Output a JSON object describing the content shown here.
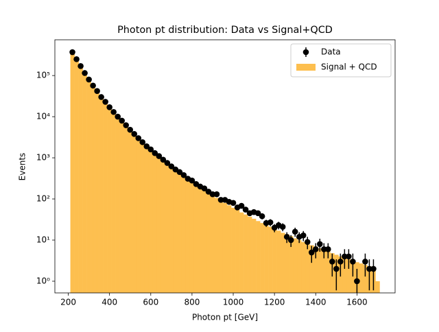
{
  "chart_data": {
    "type": "histogram",
    "title": "Photon pt distribution: Data vs Signal+QCD",
    "xlabel": "Photon pt [GeV]",
    "ylabel": "Events",
    "xlim": [
      135,
      1785
    ],
    "ylim": [
      0.52,
      740000
    ],
    "log_y": true,
    "xticks": [
      200,
      400,
      600,
      800,
      1000,
      1200,
      1400,
      1600
    ],
    "yticks": [
      {
        "value": 1,
        "label": "10⁰"
      },
      {
        "value": 10,
        "label": "10¹"
      },
      {
        "value": 100,
        "label": "10²"
      },
      {
        "value": 1000,
        "label": "10³"
      },
      {
        "value": 10000,
        "label": "10⁴"
      },
      {
        "value": 100000,
        "label": "10⁵"
      }
    ],
    "legend": "upper right",
    "series": [
      {
        "name": "Data",
        "type": "errorbar",
        "color": "#000000",
        "x": [
          220,
          240,
          260,
          280,
          300,
          320,
          340,
          360,
          380,
          400,
          420,
          440,
          460,
          480,
          500,
          520,
          540,
          560,
          580,
          600,
          620,
          640,
          660,
          680,
          700,
          720,
          740,
          760,
          780,
          800,
          820,
          840,
          860,
          880,
          900,
          920,
          940,
          960,
          980,
          1000,
          1020,
          1040,
          1060,
          1080,
          1100,
          1120,
          1140,
          1160,
          1180,
          1200,
          1220,
          1240,
          1260,
          1280,
          1300,
          1320,
          1340,
          1360,
          1380,
          1400,
          1420,
          1440,
          1460,
          1480,
          1500,
          1520,
          1540,
          1560,
          1580,
          1600,
          1640,
          1660,
          1680
        ],
        "values": [
          370000,
          250000,
          170000,
          115000,
          80000,
          57000,
          42000,
          30000,
          23000,
          17000,
          13000,
          10000,
          8000,
          6200,
          4800,
          3800,
          3000,
          2400,
          1900,
          1600,
          1300,
          1100,
          900,
          750,
          620,
          520,
          450,
          380,
          310,
          280,
          230,
          200,
          180,
          150,
          130,
          130,
          95,
          95,
          85,
          80,
          62,
          68,
          55,
          45,
          48,
          45,
          38,
          26,
          27,
          20,
          23,
          21,
          12,
          10,
          16,
          12,
          13,
          9,
          5,
          6,
          8,
          6,
          6,
          3,
          2,
          3,
          4,
          4,
          3,
          1,
          3,
          2,
          2
        ],
        "errors": [
          608,
          500,
          412,
          339,
          283,
          239,
          205,
          173,
          152,
          130,
          114,
          100,
          89,
          79,
          69,
          62,
          55,
          49,
          44,
          40,
          36,
          33,
          30,
          27,
          25,
          23,
          21,
          19.5,
          17.6,
          16.7,
          15.2,
          14.1,
          13.4,
          12.2,
          11.4,
          11.4,
          9.7,
          9.7,
          9.2,
          8.9,
          7.9,
          8.2,
          7.4,
          6.7,
          6.9,
          6.7,
          6.2,
          5.1,
          5.2,
          4.5,
          4.8,
          4.6,
          3.5,
          3.2,
          4,
          3.5,
          3.6,
          3,
          2.2,
          2.4,
          2.8,
          2.4,
          2.4,
          1.7,
          1.4,
          1.7,
          2,
          2,
          1.7,
          1,
          1.7,
          1.4,
          1.4
        ]
      },
      {
        "name": "Signal + QCD",
        "type": "bars",
        "color": "#fdbf4f",
        "bins": [
          210,
          230,
          250,
          270,
          290,
          310,
          330,
          350,
          370,
          390,
          410,
          430,
          450,
          470,
          490,
          510,
          530,
          550,
          570,
          590,
          610,
          630,
          650,
          670,
          690,
          710,
          730,
          750,
          770,
          790,
          810,
          830,
          850,
          870,
          890,
          910,
          930,
          950,
          970,
          990,
          1010,
          1030,
          1050,
          1070,
          1090,
          1110,
          1130,
          1150,
          1170,
          1190,
          1210,
          1230,
          1250,
          1270,
          1290,
          1310,
          1330,
          1350,
          1370,
          1390,
          1410,
          1430,
          1450,
          1470,
          1490,
          1510,
          1530,
          1550,
          1570,
          1590,
          1610,
          1630,
          1650,
          1670,
          1690,
          1710
        ],
        "values": [
          350000,
          240000,
          165000,
          115000,
          80000,
          57000,
          41000,
          30000,
          22500,
          17000,
          13000,
          10000,
          7800,
          6100,
          4800,
          3800,
          3000,
          2400,
          1950,
          1600,
          1300,
          1070,
          880,
          730,
          610,
          510,
          430,
          360,
          305,
          260,
          220,
          190,
          165,
          140,
          122,
          106,
          92,
          80,
          70,
          61,
          54,
          47,
          42,
          37,
          33,
          29,
          26,
          23,
          21,
          19,
          17,
          15,
          14,
          12.5,
          11,
          10,
          9,
          8,
          7.5,
          7,
          6.3,
          5.8,
          5.3,
          4.8,
          4.4,
          4,
          3.7,
          3.4,
          3.1,
          2.9,
          2.7,
          2.5,
          2.3,
          2.2,
          1.0
        ]
      }
    ]
  }
}
